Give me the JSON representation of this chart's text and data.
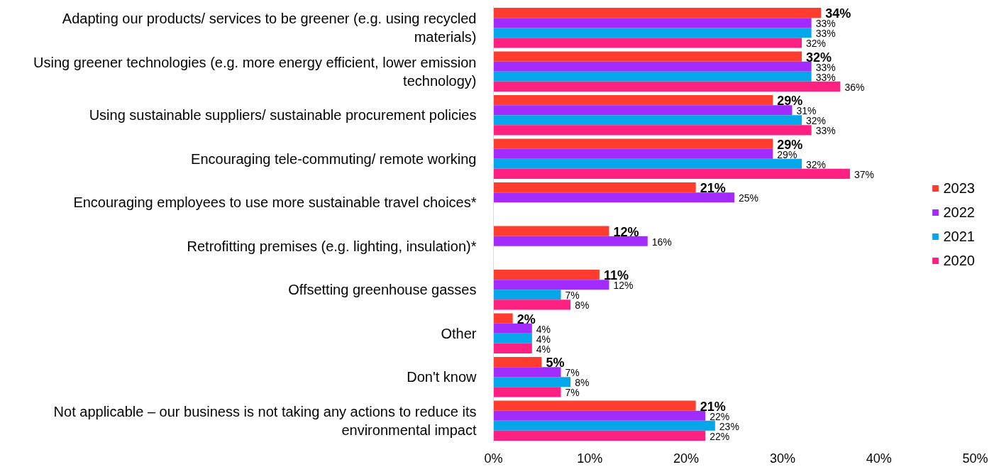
{
  "chart_data": {
    "type": "bar",
    "orientation": "horizontal",
    "categories": [
      "Adapting our products/ services to be greener (e.g. using recycled materials)",
      "Using greener technologies (e.g. more energy efficient, lower emission technology)",
      "Using sustainable suppliers/ sustainable procurement policies",
      "Encouraging tele-commuting/ remote working",
      "Encouraging employees to use more sustainable travel choices*",
      "Retrofitting premises (e.g. lighting, insulation)*",
      "Offsetting greenhouse gasses",
      "Other",
      "Don't know",
      "Not applicable – our business is not taking any actions to reduce its environmental impact"
    ],
    "series": [
      {
        "name": "2023",
        "color": "#ff3c2d",
        "values": [
          34,
          32,
          29,
          29,
          21,
          12,
          11,
          2,
          5,
          21
        ],
        "value_labels": [
          "34%",
          "32%",
          "29%",
          "29%",
          "21%",
          "12%",
          "11%",
          "2%",
          "5%",
          "21%"
        ]
      },
      {
        "name": "2022",
        "color": "#a22bff",
        "values": [
          33,
          33,
          31,
          29,
          25,
          16,
          12,
          4,
          7,
          22
        ],
        "value_labels": [
          "33%",
          "33%",
          "31%",
          "29%",
          "25%",
          "16%",
          "12%",
          "4%",
          "7%",
          "22%"
        ]
      },
      {
        "name": "2021",
        "color": "#06a6ea",
        "values": [
          33,
          33,
          32,
          32,
          null,
          null,
          7,
          4,
          8,
          23
        ],
        "value_labels": [
          "33%",
          "33%",
          "32%",
          "32%",
          null,
          null,
          "7%",
          "4%",
          "8%",
          "23%"
        ]
      },
      {
        "name": "2020",
        "color": "#ff2181",
        "values": [
          32,
          36,
          33,
          37,
          null,
          null,
          8,
          4,
          7,
          22
        ],
        "value_labels": [
          "32%",
          "36%",
          "33%",
          "37%",
          null,
          null,
          "8%",
          "4%",
          "7%",
          "22%"
        ]
      }
    ],
    "xlim": [
      0,
      50
    ],
    "xticks": [
      {
        "value": 0,
        "label": "0%"
      },
      {
        "value": 10,
        "label": "10%"
      },
      {
        "value": 20,
        "label": "20%"
      },
      {
        "value": 30,
        "label": "30%"
      },
      {
        "value": 40,
        "label": "40%"
      },
      {
        "value": 50,
        "label": "50%"
      }
    ],
    "legend": "right"
  }
}
